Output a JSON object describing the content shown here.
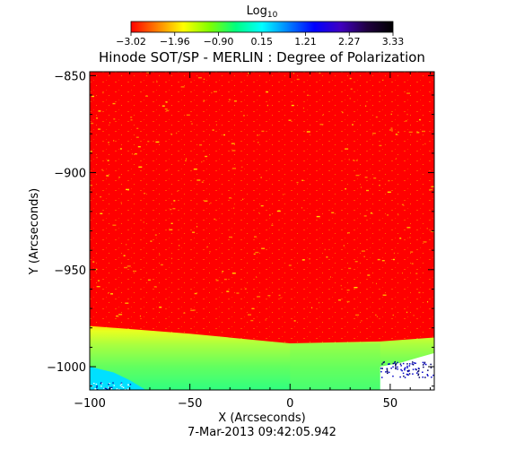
{
  "chart_data": {
    "type": "heatmap",
    "title": "Hinode SOT/SP - MERLIN : Degree of Polarization",
    "xlabel": "X (Arcseconds)",
    "ylabel": "Y (Arcseconds)",
    "xlim": [
      -100,
      72
    ],
    "ylim": [
      -1012,
      -848
    ],
    "x_ticks": [
      -100,
      -50,
      0,
      50
    ],
    "x_tick_labels": [
      "−100",
      "−50",
      "0",
      "50"
    ],
    "y_ticks": [
      -850,
      -900,
      -950,
      -1000
    ],
    "y_tick_labels": [
      "−850",
      "−900",
      "−950",
      "−1000"
    ],
    "colorbar": {
      "label_base": "Log",
      "label_sub": "10",
      "range": [
        -3.02,
        3.33
      ],
      "ticks": [
        -3.02,
        -1.96,
        -0.9,
        0.15,
        1.21,
        2.27,
        3.33
      ],
      "tick_labels": [
        "−3.02",
        "−1.96",
        "−0.90",
        "0.15",
        "1.21",
        "2.27",
        "3.33"
      ],
      "colormap": [
        "#ff0000",
        "#ff8000",
        "#ffff00",
        "#80ff00",
        "#00ff80",
        "#00ffff",
        "#0080ff",
        "#0000ff",
        "#4000c0",
        "#200040",
        "#000000"
      ]
    },
    "regions": {
      "disk_value": -3.02,
      "limb_band_value": -0.2,
      "offlimb_value": 0.3,
      "limb_y_at_x": [
        [
          -100,
          -979
        ],
        [
          -50,
          -983
        ],
        [
          0,
          -988
        ],
        [
          45,
          -987
        ],
        [
          72,
          -985
        ]
      ],
      "segment_breaks_x": [
        0,
        45
      ]
    },
    "footer": "7-Mar-2013 09:42:05.942",
    "grid": false,
    "legend": "colorbar-top"
  }
}
